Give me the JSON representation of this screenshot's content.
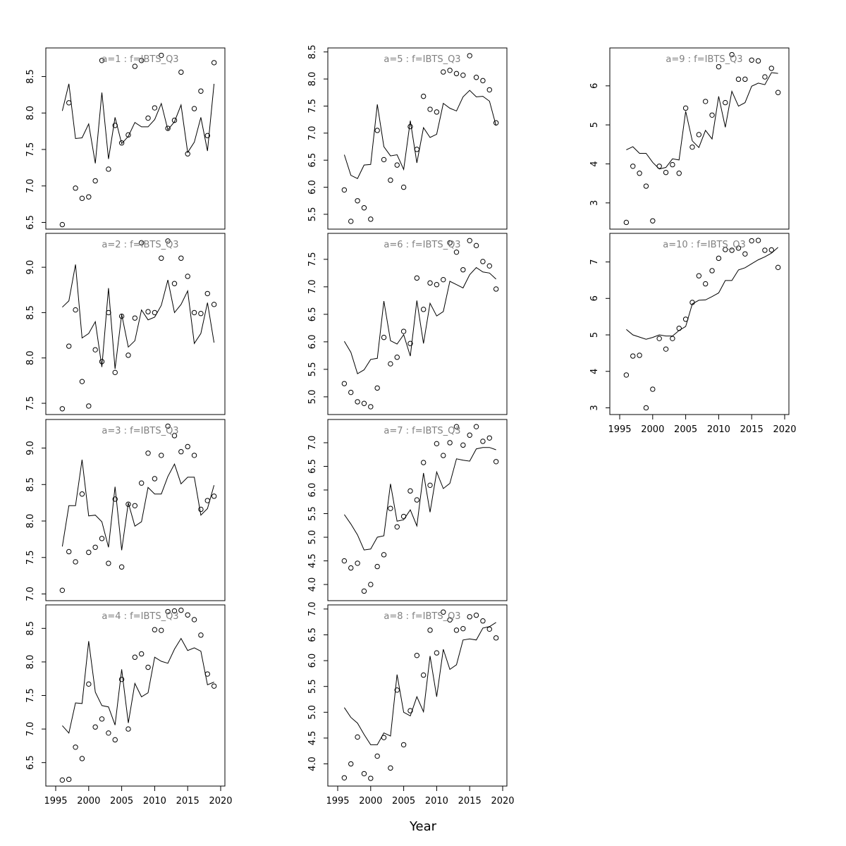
{
  "figure": {
    "xlabel": "Year"
  },
  "chart_data": [
    {
      "type": "line",
      "title": "a=1  :  f=IBTS_Q3",
      "xlim": [
        1996,
        2019
      ],
      "ylim": [
        6.5,
        8.8
      ],
      "yticks": [
        6.5,
        7.0,
        7.5,
        8.0,
        8.5
      ],
      "yticklabels": [
        "6.5",
        "7.0",
        "7.5",
        "8.0",
        "8.5"
      ],
      "grid": false,
      "x": [
        1996,
        1997,
        1998,
        1999,
        2000,
        2001,
        2002,
        2003,
        2004,
        2005,
        2006,
        2007,
        2008,
        2009,
        2010,
        2011,
        2012,
        2013,
        2014,
        2015,
        2016,
        2017,
        2018,
        2019
      ],
      "line": [
        8.03,
        8.4,
        7.65,
        7.66,
        7.85,
        7.31,
        8.28,
        7.37,
        7.94,
        7.58,
        7.68,
        7.87,
        7.81,
        7.81,
        7.91,
        8.13,
        7.77,
        7.88,
        8.11,
        7.46,
        7.6,
        7.94,
        7.48,
        8.4
      ],
      "points": [
        6.47,
        8.14,
        6.97,
        6.83,
        6.85,
        7.07,
        8.72,
        7.23,
        7.83,
        7.59,
        7.7,
        8.64,
        8.72,
        7.93,
        8.07,
        8.79,
        7.79,
        7.9,
        8.56,
        7.44,
        8.06,
        8.3,
        7.69,
        8.69
      ]
    },
    {
      "type": "line",
      "title": "a=2  :  f=IBTS_Q3",
      "xlim": [
        1996,
        2019
      ],
      "ylim": [
        7.45,
        9.3
      ],
      "yticks": [
        7.5,
        8.0,
        8.5,
        9.0
      ],
      "yticklabels": [
        "7.5",
        "8.0",
        "8.5",
        "9.0"
      ],
      "grid": false,
      "x": [
        1996,
        1997,
        1998,
        1999,
        2000,
        2001,
        2002,
        2003,
        2004,
        2005,
        2006,
        2007,
        2008,
        2009,
        2010,
        2011,
        2012,
        2013,
        2014,
        2015,
        2016,
        2017,
        2018,
        2019
      ],
      "line": [
        8.56,
        8.63,
        9.03,
        8.22,
        8.27,
        8.4,
        7.9,
        8.77,
        7.88,
        8.48,
        8.12,
        8.19,
        8.53,
        8.42,
        8.45,
        8.58,
        8.86,
        8.5,
        8.59,
        8.74,
        8.16,
        8.27,
        8.61,
        8.17
      ],
      "points": [
        7.44,
        8.13,
        8.53,
        7.74,
        7.47,
        8.09,
        7.96,
        8.5,
        7.84,
        8.46,
        8.03,
        8.44,
        9.27,
        8.51,
        8.5,
        9.1,
        9.29,
        8.82,
        9.1,
        8.9,
        8.5,
        8.49,
        8.71,
        8.59
      ]
    },
    {
      "type": "line",
      "title": "a=3  :  f=IBTS_Q3",
      "xlim": [
        1996,
        2019
      ],
      "ylim": [
        7.0,
        9.3
      ],
      "yticks": [
        7.0,
        7.5,
        8.0,
        8.5,
        9.0
      ],
      "yticklabels": [
        "7.0",
        "7.5",
        "8.0",
        "8.5",
        "9.0"
      ],
      "grid": false,
      "x": [
        1996,
        1997,
        1998,
        1999,
        2000,
        2001,
        2002,
        2003,
        2004,
        2005,
        2006,
        2007,
        2008,
        2009,
        2010,
        2011,
        2012,
        2013,
        2014,
        2015,
        2016,
        2017,
        2018,
        2019
      ],
      "line": [
        7.65,
        8.21,
        8.21,
        8.84,
        8.07,
        8.08,
        7.99,
        7.64,
        8.47,
        7.6,
        8.25,
        7.93,
        7.99,
        8.46,
        8.37,
        8.37,
        8.61,
        8.78,
        8.51,
        8.6,
        8.6,
        8.08,
        8.17,
        8.49
      ],
      "points": [
        7.05,
        7.58,
        7.44,
        8.37,
        7.57,
        7.64,
        7.76,
        7.42,
        8.3,
        7.37,
        8.23,
        8.21,
        8.52,
        8.93,
        8.58,
        8.9,
        9.3,
        9.17,
        8.95,
        9.02,
        8.9,
        8.16,
        8.28,
        8.34
      ]
    },
    {
      "type": "line",
      "title": "a=4  :  f=IBTS_Q3",
      "xlim": [
        1996,
        2019
      ],
      "ylim": [
        6.25,
        8.75
      ],
      "yticks": [
        6.5,
        7.0,
        7.5,
        8.0,
        8.5
      ],
      "yticklabels": [
        "6.5",
        "7.0",
        "7.5",
        "8.0",
        "8.5"
      ],
      "grid": false,
      "x": [
        1996,
        1997,
        1998,
        1999,
        2000,
        2001,
        2002,
        2003,
        2004,
        2005,
        2006,
        2007,
        2008,
        2009,
        2010,
        2011,
        2012,
        2013,
        2014,
        2015,
        2016,
        2017,
        2018,
        2019
      ],
      "line": [
        7.05,
        6.94,
        7.39,
        7.38,
        8.31,
        7.55,
        7.35,
        7.33,
        7.06,
        7.89,
        7.09,
        7.68,
        7.48,
        7.54,
        8.07,
        8.01,
        7.98,
        8.19,
        8.35,
        8.17,
        8.21,
        8.16,
        7.66,
        7.7
      ],
      "points": [
        6.24,
        6.25,
        6.73,
        6.56,
        7.67,
        7.03,
        7.15,
        6.94,
        6.84,
        7.74,
        7.0,
        8.07,
        8.12,
        7.92,
        8.48,
        8.47,
        8.75,
        8.76,
        8.77,
        8.7,
        8.63,
        8.4,
        7.82,
        7.64
      ]
    },
    {
      "type": "line",
      "title": "a=5  :  f=IBTS_Q3",
      "xlim": [
        1996,
        2019
      ],
      "ylim": [
        5.35,
        8.45
      ],
      "yticks": [
        5.5,
        6.0,
        6.5,
        7.0,
        7.5,
        8.0,
        8.5
      ],
      "yticklabels": [
        "5.5",
        "6.0",
        "6.5",
        "7.0",
        "7.5",
        "8.0",
        "8.5"
      ],
      "grid": false,
      "x": [
        1996,
        1997,
        1998,
        1999,
        2000,
        2001,
        2002,
        2003,
        2004,
        2005,
        2006,
        2007,
        2008,
        2009,
        2010,
        2011,
        2012,
        2013,
        2014,
        2015,
        2016,
        2017,
        2018,
        2019
      ],
      "line": [
        6.6,
        6.22,
        6.16,
        6.41,
        6.42,
        7.53,
        6.75,
        6.58,
        6.6,
        6.33,
        7.23,
        6.45,
        7.1,
        6.92,
        6.98,
        7.55,
        7.46,
        7.41,
        7.67,
        7.79,
        7.67,
        7.68,
        7.59,
        7.14
      ],
      "points": [
        5.95,
        5.37,
        5.75,
        5.62,
        5.41,
        7.05,
        6.51,
        6.13,
        6.41,
        6.0,
        7.12,
        6.7,
        7.68,
        7.44,
        7.39,
        8.13,
        8.16,
        8.1,
        8.07,
        8.43,
        8.03,
        7.97,
        7.8,
        7.19
      ]
    },
    {
      "type": "line",
      "title": "a=6  :  f=IBTS_Q3",
      "xlim": [
        1996,
        2019
      ],
      "ylim": [
        4.8,
        7.85
      ],
      "yticks": [
        5.0,
        5.5,
        6.0,
        6.5,
        7.0,
        7.5
      ],
      "yticklabels": [
        "5.0",
        "5.5",
        "6.0",
        "6.5",
        "7.0",
        "7.5"
      ],
      "grid": false,
      "x": [
        1996,
        1997,
        1998,
        1999,
        2000,
        2001,
        2002,
        2003,
        2004,
        2005,
        2006,
        2007,
        2008,
        2009,
        2010,
        2011,
        2012,
        2013,
        2014,
        2015,
        2016,
        2017,
        2018,
        2019
      ],
      "line": [
        6.01,
        5.81,
        5.42,
        5.49,
        5.68,
        5.7,
        6.74,
        6.02,
        5.96,
        6.13,
        5.74,
        6.75,
        5.97,
        6.7,
        6.47,
        6.55,
        7.1,
        7.04,
        6.98,
        7.22,
        7.35,
        7.27,
        7.25,
        7.14
      ],
      "points": [
        5.24,
        5.08,
        4.91,
        4.88,
        4.82,
        5.16,
        6.08,
        5.6,
        5.72,
        6.19,
        5.97,
        7.16,
        6.59,
        7.07,
        7.04,
        7.13,
        7.8,
        7.63,
        7.31,
        7.84,
        7.75,
        7.46,
        7.38,
        6.96
      ]
    },
    {
      "type": "line",
      "title": "a=7  :  f=IBTS_Q3",
      "xlim": [
        1996,
        2019
      ],
      "ylim": [
        3.8,
        7.35
      ],
      "yticks": [
        4.0,
        4.5,
        5.0,
        5.5,
        6.0,
        6.5,
        7.0
      ],
      "yticklabels": [
        "4.0",
        "4.5",
        "5.0",
        "5.5",
        "6.0",
        "6.5",
        "7.0"
      ],
      "grid": false,
      "x": [
        1996,
        1997,
        1998,
        1999,
        2000,
        2001,
        2002,
        2003,
        2004,
        2005,
        2006,
        2007,
        2008,
        2009,
        2010,
        2011,
        2012,
        2013,
        2014,
        2015,
        2016,
        2017,
        2018,
        2019
      ],
      "line": [
        5.48,
        5.28,
        5.05,
        4.73,
        4.75,
        5.0,
        5.03,
        6.13,
        5.34,
        5.37,
        5.58,
        5.24,
        6.36,
        5.53,
        6.38,
        6.03,
        6.14,
        6.66,
        6.63,
        6.61,
        6.87,
        6.9,
        6.9,
        6.85
      ],
      "points": [
        4.5,
        4.35,
        4.45,
        3.86,
        4.0,
        4.38,
        4.63,
        5.61,
        5.22,
        5.44,
        5.98,
        5.79,
        6.58,
        6.1,
        6.98,
        6.73,
        7.0,
        7.34,
        6.95,
        7.16,
        7.34,
        7.03,
        7.1,
        6.6
      ]
    },
    {
      "type": "line",
      "title": "a=8  :  f=IBTS_Q3",
      "xlim": [
        1996,
        2019
      ],
      "ylim": [
        3.7,
        6.95
      ],
      "yticks": [
        4.0,
        4.5,
        5.0,
        5.5,
        6.0,
        6.5,
        7.0
      ],
      "yticklabels": [
        "4.0",
        "4.5",
        "5.0",
        "5.5",
        "6.0",
        "6.5",
        "7.0"
      ],
      "grid": false,
      "x": [
        1996,
        1997,
        1998,
        1999,
        2000,
        2001,
        2002,
        2003,
        2004,
        2005,
        2006,
        2007,
        2008,
        2009,
        2010,
        2011,
        2012,
        2013,
        2014,
        2015,
        2016,
        2017,
        2018,
        2019
      ],
      "line": [
        5.09,
        4.9,
        4.79,
        4.57,
        4.37,
        4.37,
        4.6,
        4.54,
        5.73,
        5.0,
        4.93,
        5.3,
        5.01,
        6.09,
        5.3,
        6.22,
        5.83,
        5.92,
        6.4,
        6.42,
        6.4,
        6.63,
        6.66,
        6.74
      ],
      "points": [
        3.73,
        4.0,
        4.52,
        3.81,
        3.72,
        4.15,
        4.51,
        3.92,
        5.43,
        4.37,
        5.03,
        6.1,
        5.72,
        6.59,
        6.15,
        6.94,
        6.79,
        6.59,
        6.62,
        6.85,
        6.88,
        6.77,
        6.61,
        6.44
      ]
    },
    {
      "type": "line",
      "title": "a=9  :  f=IBTS_Q3",
      "xlim": [
        1996,
        2019
      ],
      "ylim": [
        2.5,
        6.8
      ],
      "yticks": [
        3,
        4,
        5,
        6
      ],
      "yticklabels": [
        "3",
        "4",
        "5",
        "6"
      ],
      "grid": false,
      "x": [
        1996,
        1997,
        1998,
        1999,
        2000,
        2001,
        2002,
        2003,
        2004,
        2005,
        2006,
        2007,
        2008,
        2009,
        2010,
        2011,
        2012,
        2013,
        2014,
        2015,
        2016,
        2017,
        2018,
        2019
      ],
      "line": [
        4.36,
        4.44,
        4.27,
        4.27,
        4.04,
        3.87,
        3.91,
        4.13,
        4.1,
        5.35,
        4.59,
        4.42,
        4.86,
        4.64,
        5.73,
        4.94,
        5.86,
        5.48,
        5.57,
        5.99,
        6.07,
        6.03,
        6.34,
        6.32
      ],
      "points": [
        2.5,
        3.94,
        3.76,
        3.43,
        2.54,
        3.94,
        3.78,
        3.98,
        3.76,
        5.43,
        4.43,
        4.75,
        5.6,
        5.25,
        6.49,
        5.57,
        6.8,
        6.17,
        6.17,
        6.66,
        6.64,
        6.23,
        6.45,
        5.83
      ]
    },
    {
      "type": "line",
      "title": "a=10  :  f=IBTS_Q3",
      "xlim": [
        1996,
        2019
      ],
      "ylim": [
        3.0,
        7.6
      ],
      "yticks": [
        3,
        4,
        5,
        6,
        7
      ],
      "yticklabels": [
        "3",
        "4",
        "5",
        "6",
        "7"
      ],
      "grid": false,
      "x": [
        1996,
        1997,
        1998,
        1999,
        2000,
        2001,
        2002,
        2003,
        2004,
        2005,
        2006,
        2007,
        2008,
        2009,
        2010,
        2011,
        2012,
        2013,
        2014,
        2015,
        2016,
        2017,
        2018,
        2019
      ],
      "line": [
        5.15,
        5.0,
        4.94,
        4.88,
        4.93,
        5.0,
        4.97,
        4.97,
        5.12,
        5.23,
        5.85,
        5.95,
        5.96,
        6.05,
        6.15,
        6.49,
        6.49,
        6.78,
        6.84,
        6.95,
        7.06,
        7.14,
        7.24,
        7.4
      ],
      "points": [
        3.9,
        4.42,
        4.44,
        3.0,
        3.51,
        4.9,
        4.61,
        4.9,
        5.18,
        5.43,
        5.89,
        6.62,
        6.4,
        6.76,
        7.1,
        7.34,
        7.32,
        7.38,
        7.22,
        7.58,
        7.59,
        7.32,
        7.33,
        6.85
      ]
    }
  ],
  "xaxis": {
    "ticks": [
      1995,
      2000,
      2005,
      2010,
      2015,
      2020
    ],
    "ticklabels": [
      "1995",
      "2000",
      "2005",
      "2010",
      "2015",
      "2020"
    ]
  }
}
